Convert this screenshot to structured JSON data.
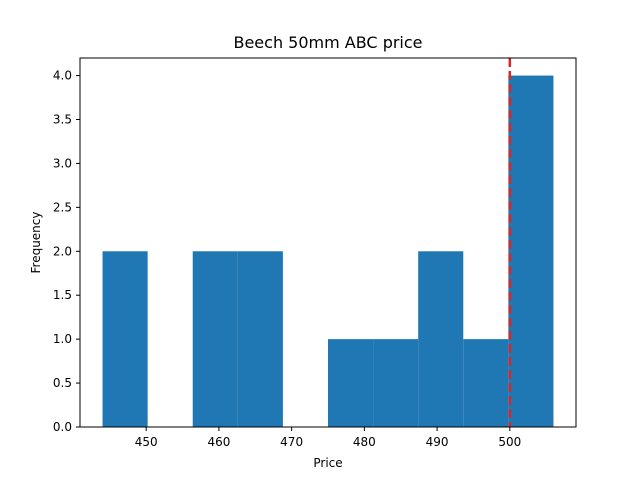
{
  "chart_data": {
    "type": "bar",
    "title": "Beech 50mm ABC price",
    "xlabel": "Price",
    "ylabel": "Frequency",
    "bins": [
      {
        "x0": 444,
        "x1": 450.2,
        "count": 2
      },
      {
        "x0": 450.2,
        "x1": 456.4,
        "count": 0
      },
      {
        "x0": 456.4,
        "x1": 462.6,
        "count": 2
      },
      {
        "x0": 462.6,
        "x1": 468.8,
        "count": 2
      },
      {
        "x0": 468.8,
        "x1": 475.0,
        "count": 0
      },
      {
        "x0": 475.0,
        "x1": 481.2,
        "count": 1
      },
      {
        "x0": 481.2,
        "x1": 487.4,
        "count": 1
      },
      {
        "x0": 487.4,
        "x1": 493.6,
        "count": 2
      },
      {
        "x0": 493.6,
        "x1": 499.8,
        "count": 1
      },
      {
        "x0": 499.8,
        "x1": 506.0,
        "count": 4
      }
    ],
    "xticks": [
      450,
      460,
      470,
      480,
      490,
      500
    ],
    "yticks": [
      0.0,
      0.5,
      1.0,
      1.5,
      2.0,
      2.5,
      3.0,
      3.5,
      4.0
    ],
    "xlim": [
      440.9,
      509.1
    ],
    "ylim": [
      0,
      4.2
    ],
    "reference_line": {
      "x": 500,
      "color": "#d62728",
      "style": "dashed"
    },
    "bar_color": "#1f77b4",
    "grid": false
  }
}
